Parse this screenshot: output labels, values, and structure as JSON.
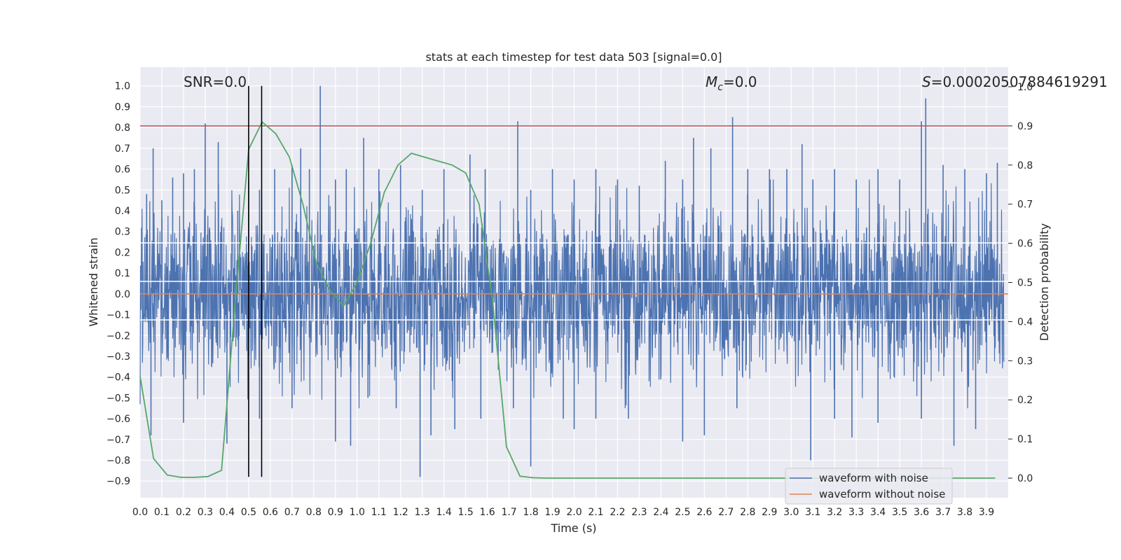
{
  "chart_data": {
    "type": "line",
    "title": "stats at each timestep for test data 503 [signal=0.0]",
    "xlabel": "Time (s)",
    "ylabel": "Whitened strain",
    "ylabel_right": "Detection probability",
    "xlim": [
      0.0,
      4.0
    ],
    "ylim": [
      -0.98,
      1.09
    ],
    "ylim_right": [
      -0.05,
      1.05
    ],
    "x_ticks": [
      "0.0",
      "0.1",
      "0.2",
      "0.3",
      "0.4",
      "0.5",
      "0.6",
      "0.7",
      "0.8",
      "0.9",
      "1.0",
      "1.1",
      "1.2",
      "1.3",
      "1.4",
      "1.5",
      "1.6",
      "1.7",
      "1.8",
      "1.9",
      "2.0",
      "2.1",
      "2.2",
      "2.3",
      "2.4",
      "2.5",
      "2.6",
      "2.7",
      "2.8",
      "2.9",
      "3.0",
      "3.1",
      "3.2",
      "3.3",
      "3.4",
      "3.5",
      "3.6",
      "3.7",
      "3.8",
      "3.9"
    ],
    "y_ticks": [
      "1.0",
      "0.9",
      "0.8",
      "0.7",
      "0.6",
      "0.5",
      "0.4",
      "0.3",
      "0.2",
      "0.1",
      "0.0",
      "−0.1",
      "−0.2",
      "−0.3",
      "−0.4",
      "−0.5",
      "−0.6",
      "−0.7",
      "−0.8",
      "−0.9"
    ],
    "y_right_ticks": [
      "1.0",
      "0.9",
      "0.8",
      "0.7",
      "0.6",
      "0.5",
      "0.4",
      "0.3",
      "0.2",
      "0.1",
      "0.0"
    ],
    "grid": true,
    "legend_position": "lower-right",
    "annotations": {
      "snr": "SNR=0.0",
      "mc_symbol": "M",
      "mc_sub": "c",
      "mc_value": "=0.0",
      "s_symbol": "S",
      "s_value": "=0.00020507884619291"
    },
    "vertical_markers": [
      0.5,
      0.56
    ],
    "marker_range": [
      -0.88,
      1.0
    ],
    "threshold_right": 0.9,
    "white_hlines": [
      0.245,
      0.06,
      -0.125
    ],
    "series": [
      {
        "name": "waveform with noise",
        "color": "#4c72b0",
        "envelope": "dense noise around 0, typical range -0.35 to 0.35, peaks 1.0 at 0.83s, 0.94 at 3.62s, 0.85 at 2.73s, minima -0.88 at 1.29s",
        "peaks": [
          [
            0.03,
            0.48
          ],
          [
            0.06,
            0.7
          ],
          [
            0.1,
            0.45
          ],
          [
            0.15,
            0.56
          ],
          [
            0.2,
            0.58
          ],
          [
            0.25,
            0.6
          ],
          [
            0.3,
            0.82
          ],
          [
            0.36,
            0.73
          ],
          [
            0.45,
            0.4
          ],
          [
            0.5,
            0.55
          ],
          [
            0.55,
            0.5
          ],
          [
            0.62,
            0.6
          ],
          [
            0.7,
            0.62
          ],
          [
            0.74,
            0.7
          ],
          [
            0.78,
            0.6
          ],
          [
            0.83,
            1.0
          ],
          [
            0.9,
            0.55
          ],
          [
            0.95,
            0.6
          ],
          [
            1.03,
            0.75
          ],
          [
            1.1,
            0.6
          ],
          [
            1.2,
            0.62
          ],
          [
            1.3,
            0.5
          ],
          [
            1.4,
            0.6
          ],
          [
            1.52,
            0.67
          ],
          [
            1.59,
            0.6
          ],
          [
            1.74,
            0.83
          ],
          [
            1.8,
            0.5
          ],
          [
            1.9,
            0.6
          ],
          [
            2.0,
            0.55
          ],
          [
            2.1,
            0.6
          ],
          [
            2.2,
            0.55
          ],
          [
            2.3,
            0.52
          ],
          [
            2.42,
            0.64
          ],
          [
            2.5,
            0.55
          ],
          [
            2.55,
            0.75
          ],
          [
            2.63,
            0.7
          ],
          [
            2.73,
            0.85
          ],
          [
            2.8,
            0.6
          ],
          [
            2.9,
            0.6
          ],
          [
            2.98,
            0.6
          ],
          [
            3.05,
            0.72
          ],
          [
            3.1,
            0.55
          ],
          [
            3.2,
            0.6
          ],
          [
            3.3,
            0.55
          ],
          [
            3.4,
            0.6
          ],
          [
            3.5,
            0.55
          ],
          [
            3.6,
            0.83
          ],
          [
            3.62,
            0.94
          ],
          [
            3.7,
            0.62
          ],
          [
            3.8,
            0.6
          ],
          [
            3.9,
            0.58
          ],
          [
            3.95,
            0.63
          ]
        ],
        "troughs": [
          [
            0.05,
            -0.68
          ],
          [
            0.2,
            -0.62
          ],
          [
            0.4,
            -0.72
          ],
          [
            0.55,
            -0.6
          ],
          [
            0.7,
            -0.55
          ],
          [
            0.9,
            -0.71
          ],
          [
            0.97,
            -0.73
          ],
          [
            1.05,
            -0.5
          ],
          [
            1.18,
            -0.55
          ],
          [
            1.29,
            -0.88
          ],
          [
            1.34,
            -0.68
          ],
          [
            1.45,
            -0.65
          ],
          [
            1.57,
            -0.6
          ],
          [
            1.72,
            -0.55
          ],
          [
            1.8,
            -0.83
          ],
          [
            1.95,
            -0.6
          ],
          [
            2.0,
            -0.65
          ],
          [
            2.1,
            -0.6
          ],
          [
            2.25,
            -0.6
          ],
          [
            2.5,
            -0.71
          ],
          [
            2.6,
            -0.68
          ],
          [
            2.75,
            -0.55
          ],
          [
            3.09,
            -0.8
          ],
          [
            3.2,
            -0.6
          ],
          [
            3.28,
            -0.69
          ],
          [
            3.4,
            -0.62
          ],
          [
            3.6,
            -0.6
          ],
          [
            3.75,
            -0.73
          ],
          [
            3.85,
            -0.65
          ]
        ]
      },
      {
        "name": "waveform without noise",
        "color": "#dd8452",
        "x": [
          0.0,
          4.0
        ],
        "values": [
          0.0,
          0.0
        ]
      },
      {
        "name": "detection probability",
        "color": "#55a868",
        "axis": "right",
        "x": [
          0.0,
          0.062,
          0.125,
          0.188,
          0.25,
          0.312,
          0.375,
          0.438,
          0.5,
          0.562,
          0.625,
          0.688,
          0.75,
          0.812,
          0.875,
          0.938,
          1.0,
          1.062,
          1.125,
          1.188,
          1.25,
          1.312,
          1.375,
          1.438,
          1.5,
          1.562,
          1.625,
          1.688,
          1.75,
          1.812,
          1.875,
          1.938,
          2.0,
          2.5,
          3.0,
          3.5,
          3.94
        ],
        "values": [
          0.26,
          0.05,
          0.008,
          0.002,
          0.002,
          0.004,
          0.02,
          0.45,
          0.84,
          0.91,
          0.88,
          0.82,
          0.7,
          0.55,
          0.48,
          0.44,
          0.5,
          0.6,
          0.73,
          0.8,
          0.83,
          0.82,
          0.81,
          0.8,
          0.78,
          0.7,
          0.45,
          0.08,
          0.005,
          0.001,
          0.0,
          0.0,
          0.0,
          0.0,
          0.0,
          0.0,
          0.0
        ]
      }
    ]
  }
}
